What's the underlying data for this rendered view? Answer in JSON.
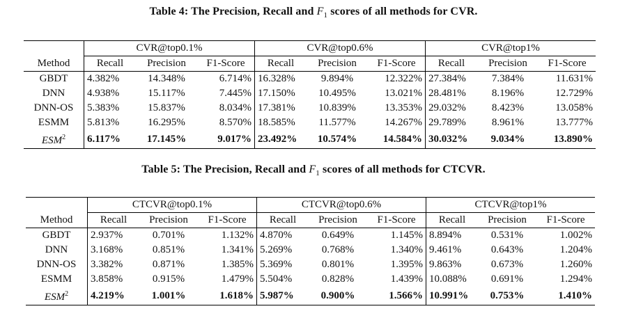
{
  "table4": {
    "caption": "Table 4: The Precision, Recall and F1 scores of all methods for CVR.",
    "caption_prefix": "Table 4: The Precision, Recall and ",
    "caption_f": "F",
    "caption_sub": "1",
    "caption_suffix": " scores of all methods for CVR.",
    "groups": [
      "CVR@top0.1%",
      "CVR@top0.6%",
      "CVR@top1%"
    ],
    "method_header": "Method",
    "metrics": [
      "Recall",
      "Precision",
      "F1-Score"
    ],
    "rows": [
      {
        "method": "GBDT",
        "values": [
          "4.382%",
          "14.348%",
          "6.714%",
          "16.328%",
          "9.894%",
          "12.322%",
          "27.384%",
          "7.384%",
          "11.631%"
        ]
      },
      {
        "method": "DNN",
        "values": [
          "4.938%",
          "15.117%",
          "7.445%",
          "17.150%",
          "10.495%",
          "13.021%",
          "28.481%",
          "8.196%",
          "12.729%"
        ]
      },
      {
        "method": "DNN-OS",
        "values": [
          "5.383%",
          "15.837%",
          "8.034%",
          "17.381%",
          "10.839%",
          "13.353%",
          "29.032%",
          "8.423%",
          "13.058%"
        ]
      },
      {
        "method": "ESMM",
        "values": [
          "5.813%",
          "16.295%",
          "8.570%",
          "18.585%",
          "11.577%",
          "14.267%",
          "29.789%",
          "8.961%",
          "13.777%"
        ]
      },
      {
        "method": "ESM",
        "method_sup": "2",
        "values": [
          "6.117%",
          "17.145%",
          "9.017%",
          "23.492%",
          "10.574%",
          "14.584%",
          "30.032%",
          "9.034%",
          "13.890%"
        ]
      }
    ]
  },
  "table5": {
    "caption": "Table 5: The Precision, Recall and F1 scores of all methods for CTCVR.",
    "caption_prefix": "Table 5: The Precision, Recall and ",
    "caption_f": "F",
    "caption_sub": "1",
    "caption_suffix": " scores of all methods for CTCVR.",
    "groups": [
      "CTCVR@top0.1%",
      "CTCVR@top0.6%",
      "CTCVR@top1%"
    ],
    "method_header": "Method",
    "metrics": [
      "Recall",
      "Precision",
      "F1-Score"
    ],
    "rows": [
      {
        "method": "GBDT",
        "values": [
          "2.937%",
          "0.701%",
          "1.132%",
          "4.870%",
          "0.649%",
          "1.145%",
          "8.894%",
          "0.531%",
          "1.002%"
        ]
      },
      {
        "method": "DNN",
        "values": [
          "3.168%",
          "0.851%",
          "1.341%",
          "5.269%",
          "0.768%",
          "1.340%",
          "9.461%",
          "0.643%",
          "1.204%"
        ]
      },
      {
        "method": "DNN-OS",
        "values": [
          "3.382%",
          "0.871%",
          "1.385%",
          "5.369%",
          "0.801%",
          "1.395%",
          "9.863%",
          "0.673%",
          "1.260%"
        ]
      },
      {
        "method": "ESMM",
        "values": [
          "3.858%",
          "0.915%",
          "1.479%",
          "5.504%",
          "0.828%",
          "1.439%",
          "10.088%",
          "0.691%",
          "1.294%"
        ]
      },
      {
        "method": "ESM",
        "method_sup": "2",
        "values": [
          "4.219%",
          "1.001%",
          "1.618%",
          "5.987%",
          "0.900%",
          "1.566%",
          "10.991%",
          "0.753%",
          "1.410%"
        ]
      }
    ]
  }
}
